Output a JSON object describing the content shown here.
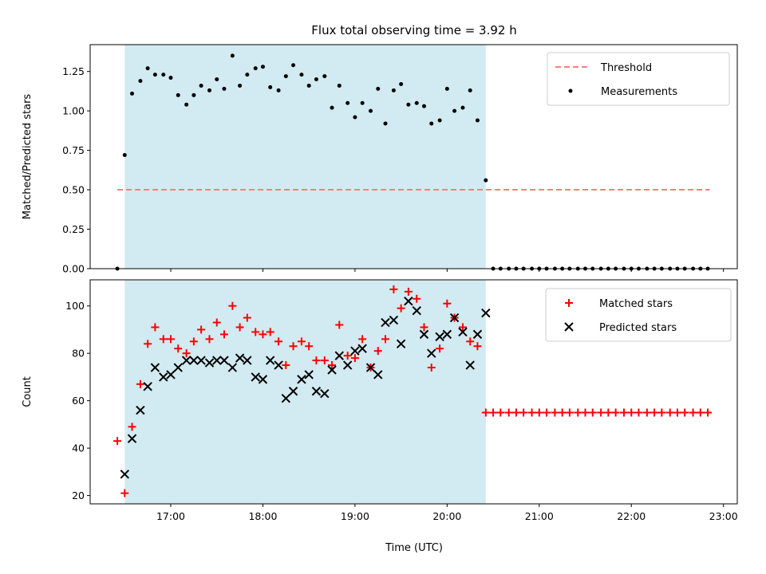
{
  "title": "Flux total observing time = 3.92 h",
  "colors": {
    "shade": "#add8e6",
    "threshold": "#ff7f7f",
    "measurements": "#000000",
    "matched": "#ff0000",
    "predicted": "#000000"
  },
  "xaxis": {
    "label": "Time (UTC)",
    "range_hours": [
      16.125,
      23.15
    ],
    "ticks": [
      {
        "value": 17,
        "label": "17:00"
      },
      {
        "value": 18,
        "label": "18:00"
      },
      {
        "value": 19,
        "label": "19:00"
      },
      {
        "value": 20,
        "label": "20:00"
      },
      {
        "value": 21,
        "label": "21:00"
      },
      {
        "value": 22,
        "label": "22:00"
      },
      {
        "value": 23,
        "label": "23:00"
      }
    ]
  },
  "chart_data": [
    {
      "type": "scatter",
      "panel": "top",
      "ylabel": "Matched/Predicted stars",
      "ylim": [
        0,
        1.42
      ],
      "yticks": [
        "0.00",
        "0.25",
        "0.50",
        "0.75",
        "1.00",
        "1.25"
      ],
      "shaded_span_hours": [
        16.5,
        20.42
      ],
      "legend": {
        "position": "top-right",
        "entries": [
          "Threshold",
          "Measurements"
        ]
      },
      "threshold": {
        "name": "Threshold",
        "value": 0.5,
        "x_range_hours": [
          16.42,
          22.85
        ],
        "style": "dashed"
      },
      "series": [
        {
          "name": "Measurements",
          "marker": "dot",
          "x": [
            16.42,
            16.5,
            16.58,
            16.67,
            16.75,
            16.83,
            16.92,
            17.0,
            17.08,
            17.17,
            17.25,
            17.33,
            17.42,
            17.5,
            17.58,
            17.67,
            17.75,
            17.83,
            17.92,
            18.0,
            18.08,
            18.17,
            18.25,
            18.33,
            18.42,
            18.5,
            18.58,
            18.67,
            18.75,
            18.83,
            18.92,
            19.0,
            19.08,
            19.17,
            19.25,
            19.33,
            19.42,
            19.5,
            19.58,
            19.67,
            19.75,
            19.83,
            19.92,
            20.0,
            20.08,
            20.17,
            20.25,
            20.33,
            20.42,
            20.5,
            20.58,
            20.67,
            20.75,
            20.83,
            20.92,
            21.0,
            21.08,
            21.17,
            21.25,
            21.33,
            21.42,
            21.5,
            21.58,
            21.67,
            21.75,
            21.83,
            21.92,
            22.0,
            22.08,
            22.17,
            22.25,
            22.33,
            22.42,
            22.5,
            22.58,
            22.67,
            22.75,
            22.83
          ],
          "y": [
            0.0,
            0.72,
            1.11,
            1.19,
            1.27,
            1.23,
            1.23,
            1.21,
            1.1,
            1.04,
            1.1,
            1.16,
            1.13,
            1.2,
            1.14,
            1.35,
            1.16,
            1.23,
            1.27,
            1.28,
            1.15,
            1.13,
            1.22,
            1.29,
            1.23,
            1.16,
            1.2,
            1.22,
            1.02,
            1.16,
            1.05,
            0.96,
            1.05,
            1.0,
            1.14,
            0.92,
            1.13,
            1.17,
            1.04,
            1.05,
            1.03,
            0.92,
            0.94,
            1.14,
            1.0,
            1.02,
            1.13,
            0.94,
            0.56,
            0,
            0,
            0,
            0,
            0,
            0,
            0,
            0,
            0,
            0,
            0,
            0,
            0,
            0,
            0,
            0,
            0,
            0,
            0,
            0,
            0,
            0,
            0,
            0,
            0,
            0,
            0,
            0,
            0
          ]
        }
      ]
    },
    {
      "type": "scatter",
      "panel": "bottom",
      "ylabel": "Count",
      "ylim": [
        16.5,
        111
      ],
      "yticks": [
        "20",
        "40",
        "60",
        "80",
        "100"
      ],
      "shaded_span_hours": [
        16.5,
        20.42
      ],
      "legend": {
        "position": "top-right",
        "entries": [
          "Matched stars",
          "Predicted stars"
        ]
      },
      "series": [
        {
          "name": "Matched stars",
          "marker": "plus",
          "x": [
            16.42,
            16.5,
            16.58,
            16.67,
            16.75,
            16.83,
            16.92,
            17.0,
            17.08,
            17.17,
            17.25,
            17.33,
            17.42,
            17.5,
            17.58,
            17.67,
            17.75,
            17.83,
            17.92,
            18.0,
            18.08,
            18.17,
            18.25,
            18.33,
            18.42,
            18.5,
            18.58,
            18.67,
            18.75,
            18.83,
            18.92,
            19.0,
            19.08,
            19.17,
            19.25,
            19.33,
            19.42,
            19.5,
            19.58,
            19.67,
            19.75,
            19.83,
            19.92,
            20.0,
            20.08,
            20.17,
            20.25,
            20.33,
            20.42,
            20.5,
            20.58,
            20.67,
            20.75,
            20.83,
            20.92,
            21.0,
            21.08,
            21.17,
            21.25,
            21.33,
            21.42,
            21.5,
            21.58,
            21.67,
            21.75,
            21.83,
            21.92,
            22.0,
            22.08,
            22.17,
            22.25,
            22.33,
            22.42,
            22.5,
            22.58,
            22.67,
            22.75,
            22.83
          ],
          "y": [
            43,
            21,
            49,
            67,
            84,
            91,
            86,
            86,
            82,
            80,
            85,
            90,
            86,
            93,
            88,
            100,
            91,
            95,
            89,
            88,
            89,
            85,
            75,
            83,
            85,
            83,
            77,
            77,
            75,
            92,
            79,
            78,
            86,
            74,
            81,
            86,
            107,
            99,
            106,
            103,
            91,
            74,
            82,
            101,
            95,
            91,
            85,
            83,
            55,
            55,
            55,
            55,
            55,
            55,
            55,
            55,
            55,
            55,
            55,
            55,
            55,
            55,
            55,
            55,
            55,
            55,
            55,
            55,
            55,
            55,
            55,
            55,
            55,
            55,
            55,
            55,
            55,
            55
          ]
        },
        {
          "name": "Predicted stars",
          "marker": "x",
          "x": [
            16.5,
            16.58,
            16.67,
            16.75,
            16.83,
            16.92,
            17.0,
            17.08,
            17.17,
            17.25,
            17.33,
            17.42,
            17.5,
            17.58,
            17.67,
            17.75,
            17.83,
            17.92,
            18.0,
            18.08,
            18.17,
            18.25,
            18.33,
            18.42,
            18.5,
            18.58,
            18.67,
            18.75,
            18.83,
            18.92,
            19.0,
            19.08,
            19.17,
            19.25,
            19.33,
            19.42,
            19.5,
            19.58,
            19.67,
            19.75,
            19.83,
            19.92,
            20.0,
            20.08,
            20.17,
            20.25,
            20.33,
            20.42
          ],
          "y": [
            29,
            44,
            56,
            66,
            74,
            70,
            71,
            74,
            77,
            77,
            77,
            76,
            77,
            77,
            74,
            78,
            77,
            70,
            69,
            77,
            75,
            61,
            64,
            69,
            71,
            64,
            63,
            73,
            79,
            75,
            81,
            82,
            74,
            71,
            93,
            94,
            84,
            102,
            98,
            88,
            80,
            87,
            88,
            95,
            89,
            75,
            88,
            97
          ]
        }
      ]
    }
  ]
}
